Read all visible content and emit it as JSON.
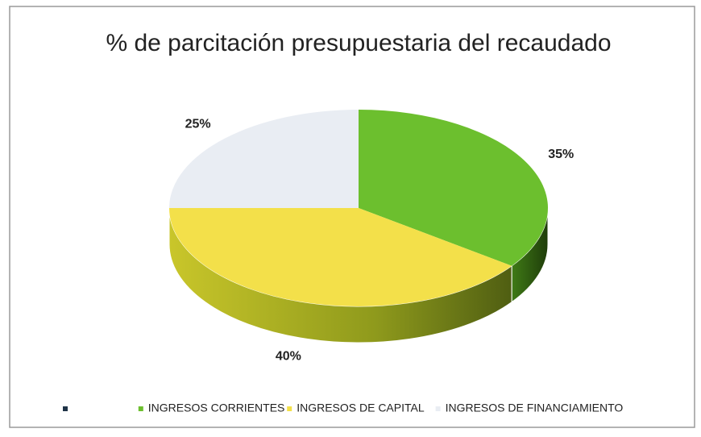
{
  "chart_data": {
    "type": "pie",
    "title": "% de parcitación presupuestaria del recaudado",
    "categories": [
      "INGRESOS CORRIENTES",
      "INGRESOS DE CAPITAL",
      "INGRESOS DE FINANCIAMIENTO"
    ],
    "values": [
      35,
      40,
      25
    ],
    "value_labels": [
      "35%",
      "40%",
      "25%"
    ],
    "colors": [
      "#6cbf2e",
      "#f3e04a",
      "#e9edf3"
    ],
    "legend": "bottom"
  }
}
